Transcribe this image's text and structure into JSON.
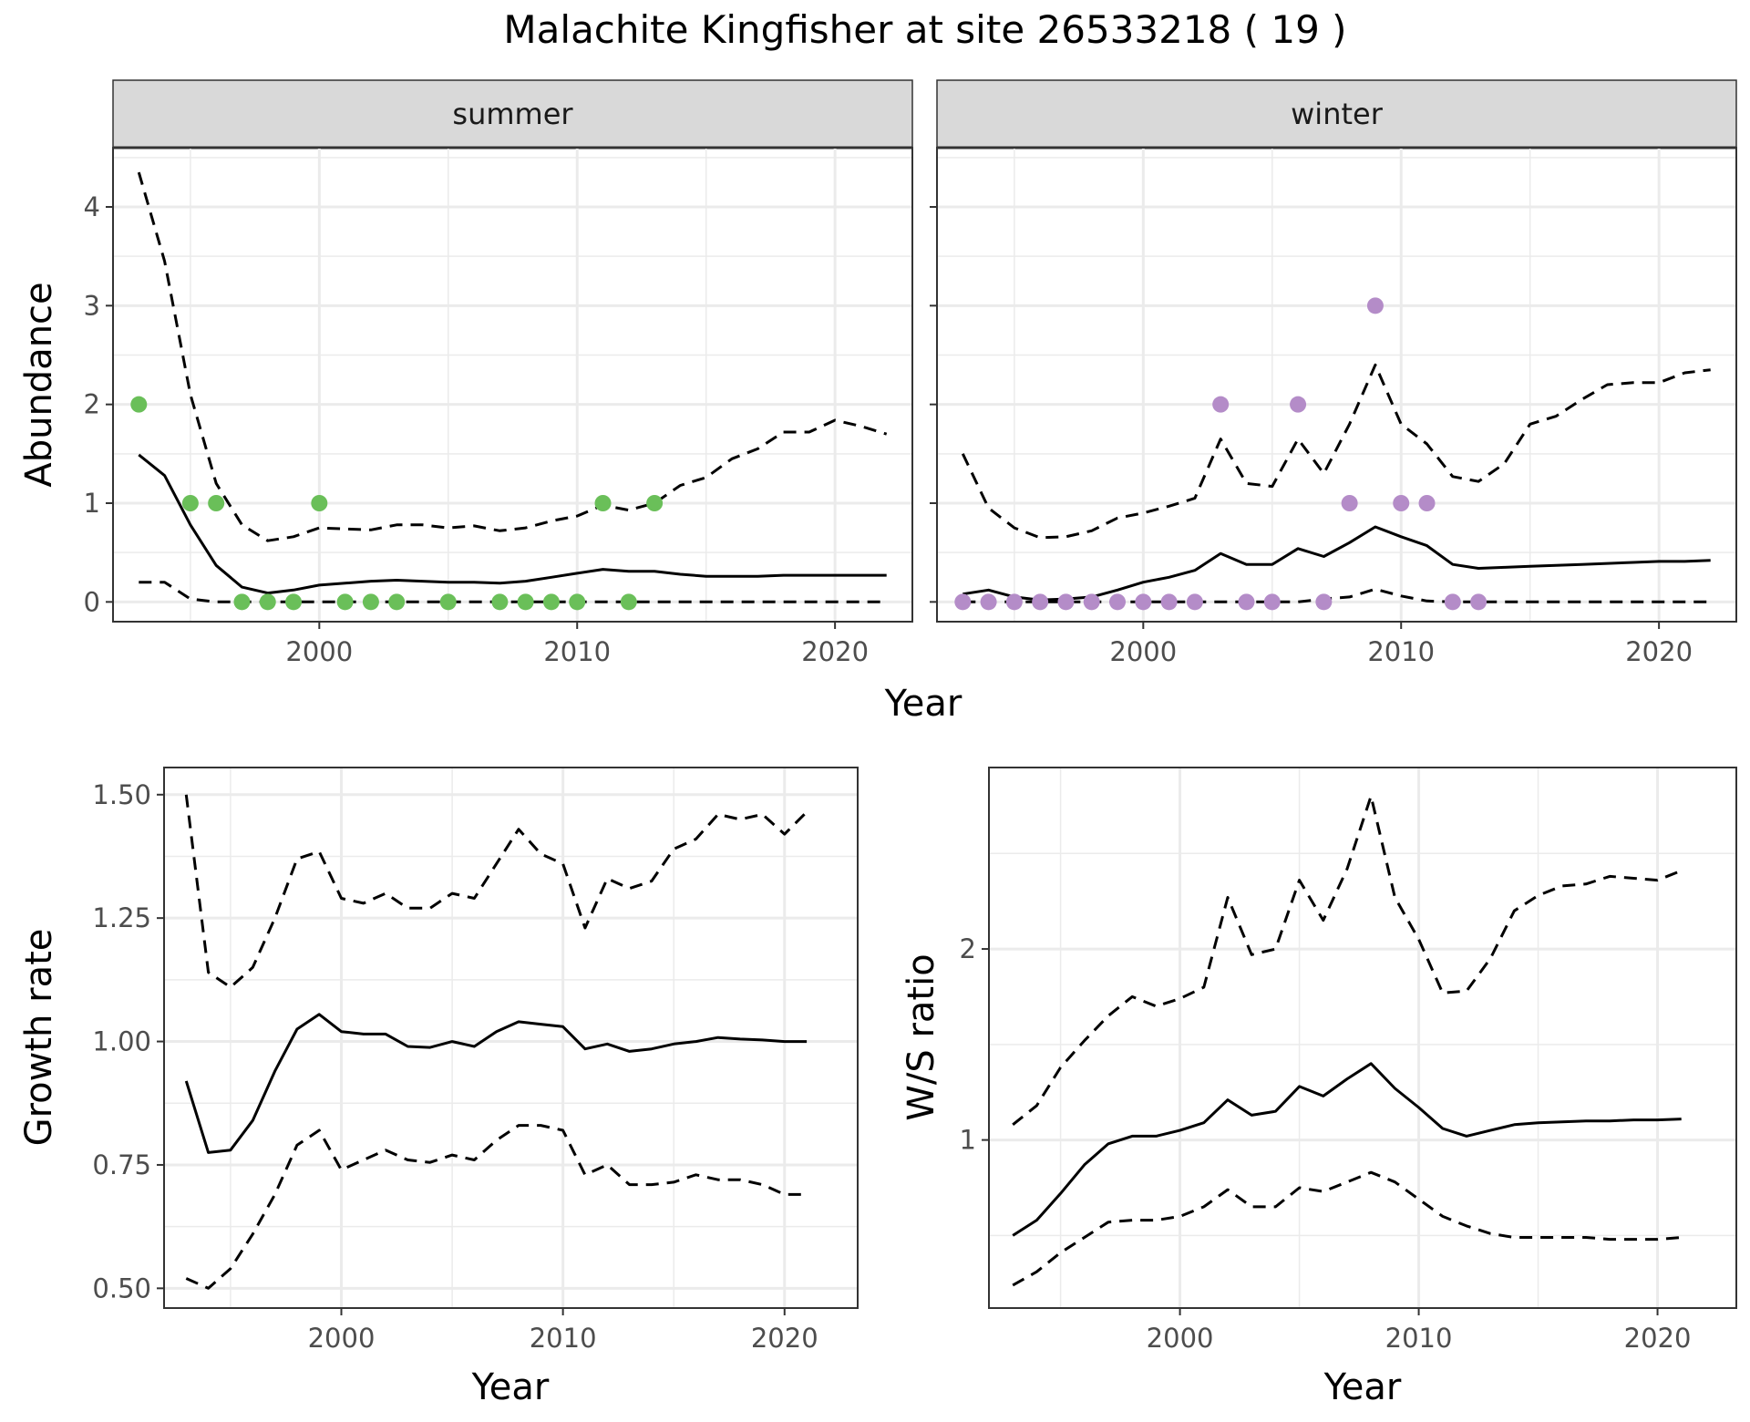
{
  "title": "Malachite Kingfisher at site 26533218 ( 19 )",
  "colors": {
    "summer_points": "#6abf59",
    "winter_points": "#b48cc8",
    "line": "#000000",
    "grid": "#ebebeb",
    "strip_bg": "#d9d9d9"
  },
  "chart_data": [
    {
      "type": "line",
      "panel": "summer",
      "strip_label": "summer",
      "xlabel": "Year",
      "ylabel": "Abundance",
      "xlim": [
        1992,
        2023
      ],
      "ylim": [
        -0.2,
        4.6
      ],
      "x_ticks": [
        2000,
        2010,
        2020
      ],
      "y_ticks": [
        0,
        1,
        2,
        3,
        4
      ],
      "x": [
        1993,
        1994,
        1995,
        1996,
        1997,
        1998,
        1999,
        2000,
        2001,
        2002,
        2003,
        2004,
        2005,
        2006,
        2007,
        2008,
        2009,
        2010,
        2011,
        2012,
        2013,
        2014,
        2015,
        2016,
        2017,
        2018,
        2019,
        2020,
        2021,
        2022
      ],
      "series": [
        {
          "role": "mean",
          "style": "solid",
          "values": [
            1.49,
            1.28,
            0.78,
            0.37,
            0.15,
            0.09,
            0.12,
            0.17,
            0.19,
            0.21,
            0.22,
            0.21,
            0.2,
            0.2,
            0.19,
            0.21,
            0.25,
            0.29,
            0.33,
            0.31,
            0.31,
            0.28,
            0.26,
            0.26,
            0.26,
            0.27,
            0.27,
            0.27,
            0.27,
            0.27
          ]
        },
        {
          "role": "upper",
          "style": "dashed",
          "values": [
            4.35,
            3.45,
            2.1,
            1.2,
            0.78,
            0.62,
            0.66,
            0.75,
            0.74,
            0.73,
            0.78,
            0.78,
            0.75,
            0.77,
            0.72,
            0.75,
            0.82,
            0.87,
            0.98,
            0.93,
            1.0,
            1.18,
            1.26,
            1.45,
            1.55,
            1.72,
            1.72,
            1.84,
            1.78,
            1.7
          ]
        },
        {
          "role": "lower",
          "style": "dashed",
          "values": [
            0.2,
            0.2,
            0.03,
            0.0,
            0.0,
            0.0,
            0.0,
            0.0,
            0.0,
            0.0,
            0.0,
            0.0,
            0.0,
            0.0,
            0.0,
            0.0,
            0.0,
            0.0,
            0.0,
            0.0,
            0.0,
            0.0,
            0.0,
            0.0,
            0.0,
            0.0,
            0.0,
            0.0,
            0.0,
            0.0
          ]
        }
      ],
      "points": [
        {
          "x": 1993,
          "y": 2
        },
        {
          "x": 1995,
          "y": 1
        },
        {
          "x": 1996,
          "y": 1
        },
        {
          "x": 1997,
          "y": 0
        },
        {
          "x": 1998,
          "y": 0
        },
        {
          "x": 1999,
          "y": 0
        },
        {
          "x": 2000,
          "y": 1
        },
        {
          "x": 2001,
          "y": 0
        },
        {
          "x": 2002,
          "y": 0
        },
        {
          "x": 2003,
          "y": 0
        },
        {
          "x": 2005,
          "y": 0
        },
        {
          "x": 2007,
          "y": 0
        },
        {
          "x": 2008,
          "y": 0
        },
        {
          "x": 2009,
          "y": 0
        },
        {
          "x": 2010,
          "y": 0
        },
        {
          "x": 2011,
          "y": 1
        },
        {
          "x": 2012,
          "y": 0
        },
        {
          "x": 2013,
          "y": 1
        }
      ]
    },
    {
      "type": "line",
      "panel": "winter",
      "strip_label": "winter",
      "xlabel": "Year",
      "ylabel": "Abundance",
      "xlim": [
        1992,
        2023
      ],
      "ylim": [
        -0.2,
        4.6
      ],
      "x_ticks": [
        2000,
        2010,
        2020
      ],
      "y_ticks": [
        0,
        1,
        2,
        3,
        4
      ],
      "x": [
        1993,
        1994,
        1995,
        1996,
        1997,
        1998,
        1999,
        2000,
        2001,
        2002,
        2003,
        2004,
        2005,
        2006,
        2007,
        2008,
        2009,
        2010,
        2011,
        2012,
        2013,
        2014,
        2015,
        2016,
        2017,
        2018,
        2019,
        2020,
        2021,
        2022
      ],
      "series": [
        {
          "role": "mean",
          "style": "solid",
          "values": [
            0.08,
            0.12,
            0.05,
            0.02,
            0.03,
            0.05,
            0.12,
            0.2,
            0.25,
            0.32,
            0.49,
            0.38,
            0.38,
            0.54,
            0.46,
            0.6,
            0.76,
            0.66,
            0.57,
            0.38,
            0.34,
            0.35,
            0.36,
            0.37,
            0.38,
            0.39,
            0.4,
            0.41,
            0.41,
            0.42
          ]
        },
        {
          "role": "upper",
          "style": "dashed",
          "values": [
            1.5,
            0.95,
            0.75,
            0.65,
            0.66,
            0.72,
            0.85,
            0.9,
            0.97,
            1.05,
            1.65,
            1.2,
            1.17,
            1.65,
            1.3,
            1.8,
            2.4,
            1.8,
            1.6,
            1.27,
            1.22,
            1.4,
            1.8,
            1.88,
            2.05,
            2.2,
            2.22,
            2.22,
            2.32,
            2.35
          ]
        },
        {
          "role": "lower",
          "style": "dashed",
          "values": [
            0.0,
            0.0,
            0.0,
            0.0,
            0.0,
            0.0,
            0.0,
            0.0,
            0.0,
            0.0,
            0.0,
            0.0,
            0.0,
            0.0,
            0.03,
            0.05,
            0.13,
            0.06,
            0.01,
            0.0,
            0.0,
            0.0,
            0.0,
            0.0,
            0.0,
            0.0,
            0.0,
            0.0,
            0.0,
            0.0
          ]
        }
      ],
      "points": [
        {
          "x": 1993,
          "y": 0
        },
        {
          "x": 1994,
          "y": 0
        },
        {
          "x": 1995,
          "y": 0
        },
        {
          "x": 1996,
          "y": 0
        },
        {
          "x": 1997,
          "y": 0
        },
        {
          "x": 1998,
          "y": 0
        },
        {
          "x": 1999,
          "y": 0
        },
        {
          "x": 2000,
          "y": 0
        },
        {
          "x": 2001,
          "y": 0
        },
        {
          "x": 2002,
          "y": 0
        },
        {
          "x": 2003,
          "y": 2
        },
        {
          "x": 2004,
          "y": 0
        },
        {
          "x": 2005,
          "y": 0
        },
        {
          "x": 2006,
          "y": 2
        },
        {
          "x": 2007,
          "y": 0
        },
        {
          "x": 2008,
          "y": 1
        },
        {
          "x": 2009,
          "y": 3
        },
        {
          "x": 2010,
          "y": 1
        },
        {
          "x": 2011,
          "y": 1
        },
        {
          "x": 2012,
          "y": 0
        },
        {
          "x": 2013,
          "y": 0
        }
      ]
    },
    {
      "type": "line",
      "panel": "growth",
      "xlabel": "Year",
      "ylabel": "Growth rate",
      "xlim": [
        1992,
        2023.3
      ],
      "ylim": [
        0.46,
        1.555
      ],
      "x_ticks": [
        2000,
        2010,
        2020
      ],
      "y_ticks": [
        0.5,
        0.75,
        1.0,
        1.25,
        1.5
      ],
      "y_tick_labels": [
        "0.50",
        "0.75",
        "1.00",
        "1.25",
        "1.50"
      ],
      "x": [
        1993,
        1994,
        1995,
        1996,
        1997,
        1998,
        1999,
        2000,
        2001,
        2002,
        2003,
        2004,
        2005,
        2006,
        2007,
        2008,
        2009,
        2010,
        2011,
        2012,
        2013,
        2014,
        2015,
        2016,
        2017,
        2018,
        2019,
        2020,
        2021
      ],
      "series": [
        {
          "role": "mean",
          "style": "solid",
          "values": [
            0.92,
            0.775,
            0.78,
            0.84,
            0.94,
            1.025,
            1.055,
            1.02,
            1.015,
            1.015,
            0.99,
            0.988,
            1.0,
            0.99,
            1.02,
            1.04,
            1.035,
            1.03,
            0.985,
            0.995,
            0.98,
            0.985,
            0.995,
            1.0,
            1.008,
            1.005,
            1.003,
            1.0,
            1.0
          ]
        },
        {
          "role": "upper",
          "style": "dashed",
          "values": [
            1.5,
            1.14,
            1.11,
            1.15,
            1.25,
            1.37,
            1.385,
            1.29,
            1.28,
            1.3,
            1.27,
            1.27,
            1.3,
            1.29,
            1.36,
            1.43,
            1.38,
            1.36,
            1.23,
            1.33,
            1.31,
            1.325,
            1.39,
            1.41,
            1.46,
            1.45,
            1.46,
            1.42,
            1.465
          ]
        },
        {
          "role": "lower",
          "style": "dashed",
          "values": [
            0.52,
            0.5,
            0.54,
            0.61,
            0.69,
            0.79,
            0.82,
            0.74,
            0.76,
            0.78,
            0.76,
            0.755,
            0.77,
            0.76,
            0.8,
            0.83,
            0.83,
            0.82,
            0.73,
            0.75,
            0.71,
            0.71,
            0.715,
            0.73,
            0.72,
            0.72,
            0.71,
            0.69,
            0.69
          ]
        }
      ]
    },
    {
      "type": "line",
      "panel": "ratio",
      "xlabel": "Year",
      "ylabel": "W/S ratio",
      "xlim": [
        1992,
        2023.3
      ],
      "ylim": [
        0.12,
        2.95
      ],
      "x_ticks": [
        2000,
        2010,
        2020
      ],
      "y_ticks": [
        1,
        2
      ],
      "y_tick_labels": [
        "1",
        "2"
      ],
      "x": [
        1993,
        1994,
        1995,
        1996,
        1997,
        1998,
        1999,
        2000,
        2001,
        2002,
        2003,
        2004,
        2005,
        2006,
        2007,
        2008,
        2009,
        2010,
        2011,
        2012,
        2013,
        2014,
        2015,
        2016,
        2017,
        2018,
        2019,
        2020,
        2021
      ],
      "series": [
        {
          "role": "mean",
          "style": "solid",
          "values": [
            0.5,
            0.58,
            0.72,
            0.87,
            0.98,
            1.02,
            1.02,
            1.05,
            1.09,
            1.21,
            1.13,
            1.15,
            1.28,
            1.23,
            1.32,
            1.4,
            1.27,
            1.17,
            1.06,
            1.02,
            1.05,
            1.08,
            1.09,
            1.095,
            1.1,
            1.1,
            1.105,
            1.105,
            1.11
          ]
        },
        {
          "role": "upper",
          "style": "dashed",
          "values": [
            1.08,
            1.18,
            1.38,
            1.52,
            1.65,
            1.75,
            1.7,
            1.74,
            1.8,
            2.27,
            1.97,
            2.0,
            2.36,
            2.15,
            2.42,
            2.8,
            2.27,
            2.05,
            1.77,
            1.78,
            1.95,
            2.2,
            2.28,
            2.33,
            2.34,
            2.38,
            2.37,
            2.36,
            2.41
          ]
        },
        {
          "role": "lower",
          "style": "dashed",
          "values": [
            0.24,
            0.31,
            0.41,
            0.49,
            0.57,
            0.58,
            0.58,
            0.6,
            0.65,
            0.74,
            0.65,
            0.65,
            0.75,
            0.73,
            0.78,
            0.83,
            0.78,
            0.69,
            0.6,
            0.55,
            0.51,
            0.49,
            0.49,
            0.49,
            0.49,
            0.48,
            0.48,
            0.48,
            0.49
          ]
        }
      ]
    }
  ]
}
